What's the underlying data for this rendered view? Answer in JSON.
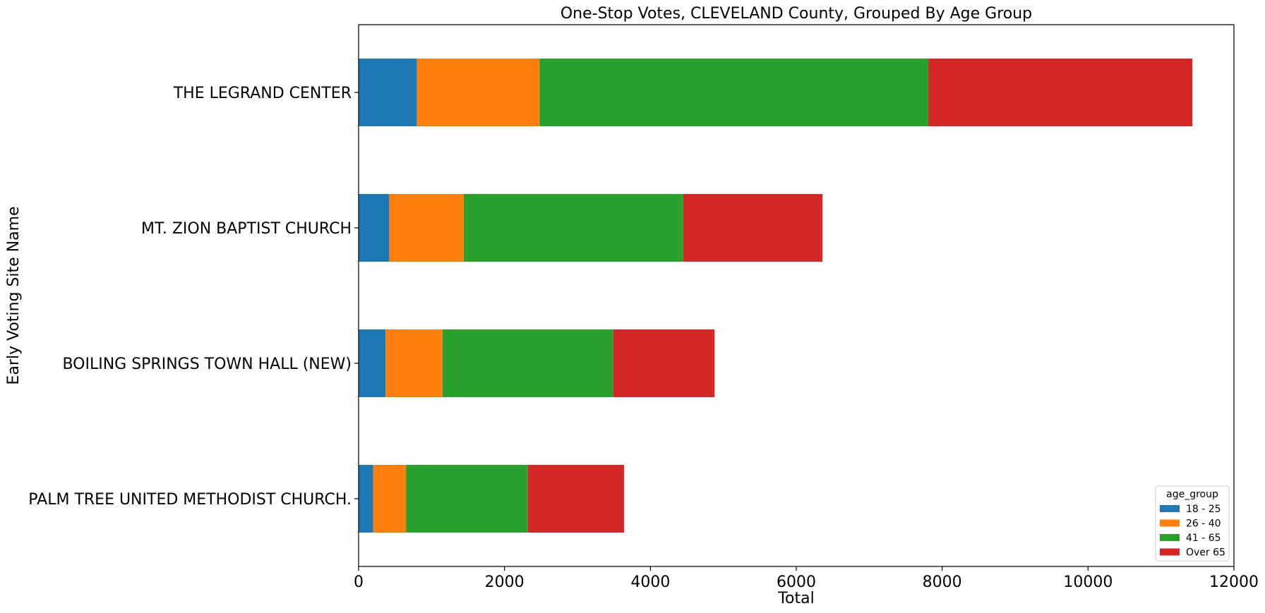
{
  "chart_data": {
    "type": "bar",
    "orientation": "horizontal",
    "stacked": true,
    "title": "One-Stop Votes, CLEVELAND County, Grouped By Age Group",
    "xlabel": "Total",
    "ylabel": "Early Voting Site Name",
    "xlim": [
      0,
      12000
    ],
    "xticks": [
      "0",
      "2000",
      "4000",
      "6000",
      "8000",
      "10000",
      "12000"
    ],
    "grid": false,
    "categories": [
      "THE LEGRAND CENTER",
      "MT. ZION BAPTIST CHURCH",
      "BOILING SPRINGS TOWN HALL (NEW)",
      "PALM TREE UNITED METHODIST CHURCH."
    ],
    "series": [
      {
        "name": "18 - 25",
        "color": "#1f77b4",
        "values": [
          800,
          420,
          370,
          200
        ]
      },
      {
        "name": "26 - 40",
        "color": "#ff7f0e",
        "values": [
          1680,
          1020,
          780,
          450
        ]
      },
      {
        "name": "41 - 65",
        "color": "#2ca02c",
        "values": [
          5330,
          3010,
          2340,
          1670
        ]
      },
      {
        "name": "Over 65",
        "color": "#d62728",
        "values": [
          3620,
          1910,
          1390,
          1320
        ]
      }
    ],
    "legend": {
      "title": "age_group",
      "placement": "lower-right"
    }
  }
}
